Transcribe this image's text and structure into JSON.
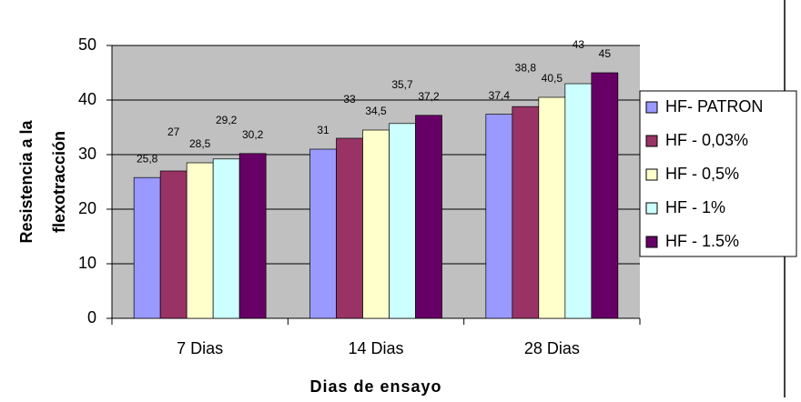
{
  "chart_data": {
    "type": "bar",
    "xlabel": "Dias de ensayo",
    "ylabel": [
      "Resistencia  a la",
      "flexotracción"
    ],
    "categories": [
      "7 Dias",
      "14 Dias",
      "28 Dias"
    ],
    "series": [
      {
        "name": "HF- PATRON",
        "color": "#9999ff",
        "values": [
          25.8,
          31,
          37.4
        ],
        "value_labels": [
          "25,8",
          "31",
          "37,4"
        ]
      },
      {
        "name": "HF - 0,03%",
        "color": "#993366",
        "values": [
          27,
          33,
          38.8
        ],
        "value_labels": [
          "27",
          "33",
          "38,8"
        ]
      },
      {
        "name": "HF - 0,5%",
        "color": "#ffffcc",
        "values": [
          28.5,
          34.5,
          40.5
        ],
        "value_labels": [
          "28,5",
          "34,5",
          "40,5"
        ]
      },
      {
        "name": "HF - 1%",
        "color": "#ccffff",
        "values": [
          29.2,
          35.7,
          43
        ],
        "value_labels": [
          "29,2",
          "35,7",
          "43"
        ]
      },
      {
        "name": "HF - 1.5%",
        "color": "#660066",
        "values": [
          30.2,
          37.2,
          45
        ],
        "value_labels": [
          "30,2",
          "37,2",
          "45"
        ]
      }
    ],
    "ylim": [
      0,
      50
    ],
    "yticks": [
      0,
      10,
      20,
      30,
      40,
      50
    ],
    "grid": true,
    "plot_background": "#c0c0c0",
    "legend": "right"
  }
}
